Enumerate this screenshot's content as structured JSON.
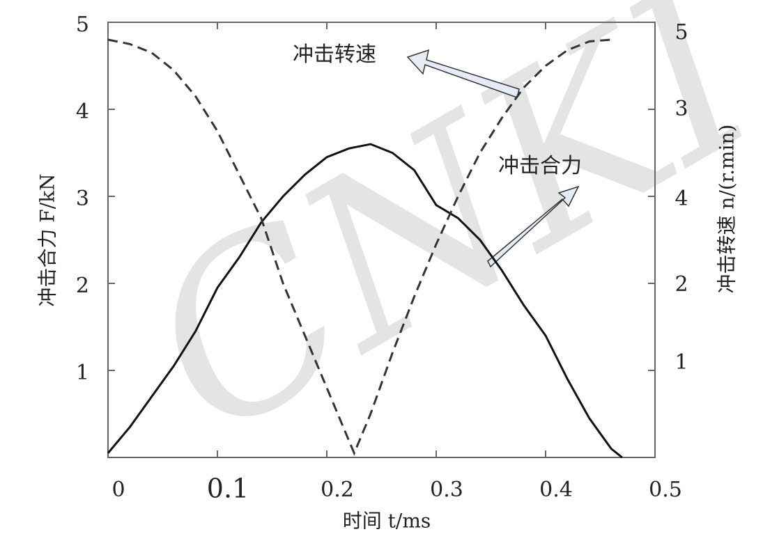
{
  "chart_data": {
    "type": "line",
    "xlabel": "时间 t/ms",
    "ylabel": "冲击合力 F/kN",
    "y2label": "冲击转速 n/(r.min)",
    "xlim": [
      0,
      0.5
    ],
    "xticks": [
      0,
      0.1,
      0.2,
      0.3,
      0.4,
      0.5
    ],
    "ylim": [
      0,
      5
    ],
    "yticks": [
      1,
      2,
      3,
      4,
      5
    ],
    "y2_labels": [
      "5",
      "3",
      "4",
      "2",
      "1"
    ],
    "annotations": [
      "冲击转速",
      "冲击合力"
    ],
    "watermark": "CNKI",
    "series": [
      {
        "name": "冲击合力",
        "color": "#111111",
        "dash": false,
        "x": [
          0,
          0.02,
          0.04,
          0.06,
          0.08,
          0.1,
          0.12,
          0.14,
          0.16,
          0.18,
          0.2,
          0.22,
          0.24,
          0.26,
          0.28,
          0.3,
          0.32,
          0.34,
          0.36,
          0.38,
          0.4,
          0.42,
          0.44,
          0.46,
          0.47
        ],
        "values": [
          0.05,
          0.35,
          0.7,
          1.05,
          1.45,
          1.95,
          2.3,
          2.7,
          3.0,
          3.25,
          3.45,
          3.55,
          3.6,
          3.5,
          3.3,
          2.9,
          2.75,
          2.5,
          2.15,
          1.75,
          1.4,
          0.9,
          0.45,
          0.1,
          0
        ]
      },
      {
        "name": "冲击转速",
        "color": "#333333",
        "dash": true,
        "x": [
          0,
          0.02,
          0.04,
          0.06,
          0.08,
          0.1,
          0.12,
          0.14,
          0.16,
          0.18,
          0.2,
          0.22,
          0.225,
          0.24,
          0.26,
          0.28,
          0.3,
          0.32,
          0.34,
          0.36,
          0.38,
          0.4,
          0.42,
          0.44,
          0.46
        ],
        "values": [
          4.8,
          4.75,
          4.65,
          4.45,
          4.15,
          3.75,
          3.25,
          2.75,
          2.0,
          1.4,
          0.8,
          0.2,
          0.05,
          0.5,
          1.2,
          1.85,
          2.45,
          3.0,
          3.5,
          3.9,
          4.25,
          4.5,
          4.68,
          4.78,
          4.8
        ]
      }
    ]
  }
}
